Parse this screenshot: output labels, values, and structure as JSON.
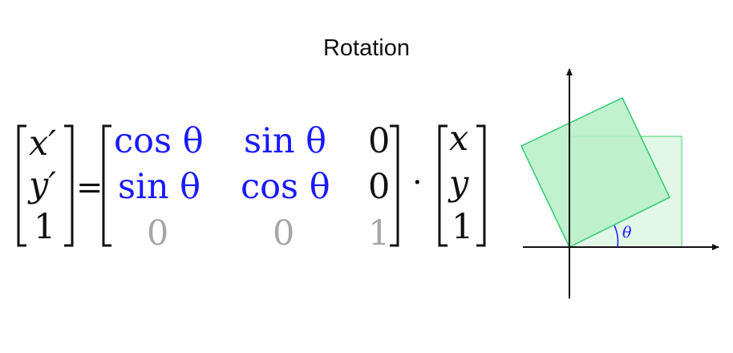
{
  "title": "Rotation",
  "lhs": {
    "row1": "x′",
    "row2": "y′",
    "row3": "1"
  },
  "equals": "=",
  "matrix": [
    [
      "cos θ",
      "sin θ",
      "0"
    ],
    [
      "sin θ",
      "cos θ",
      "0"
    ],
    [
      "0",
      "0",
      "1"
    ]
  ],
  "dot": "·",
  "rhs": {
    "row1": "x",
    "row2": "y",
    "row3": "1"
  },
  "diagram": {
    "angle_label": "θ",
    "square_color": "#2ecc71",
    "square_fill_rotated": "#b6efc5",
    "square_fill_original": "#e3f7e8",
    "angle_color": "#1a1aff"
  }
}
